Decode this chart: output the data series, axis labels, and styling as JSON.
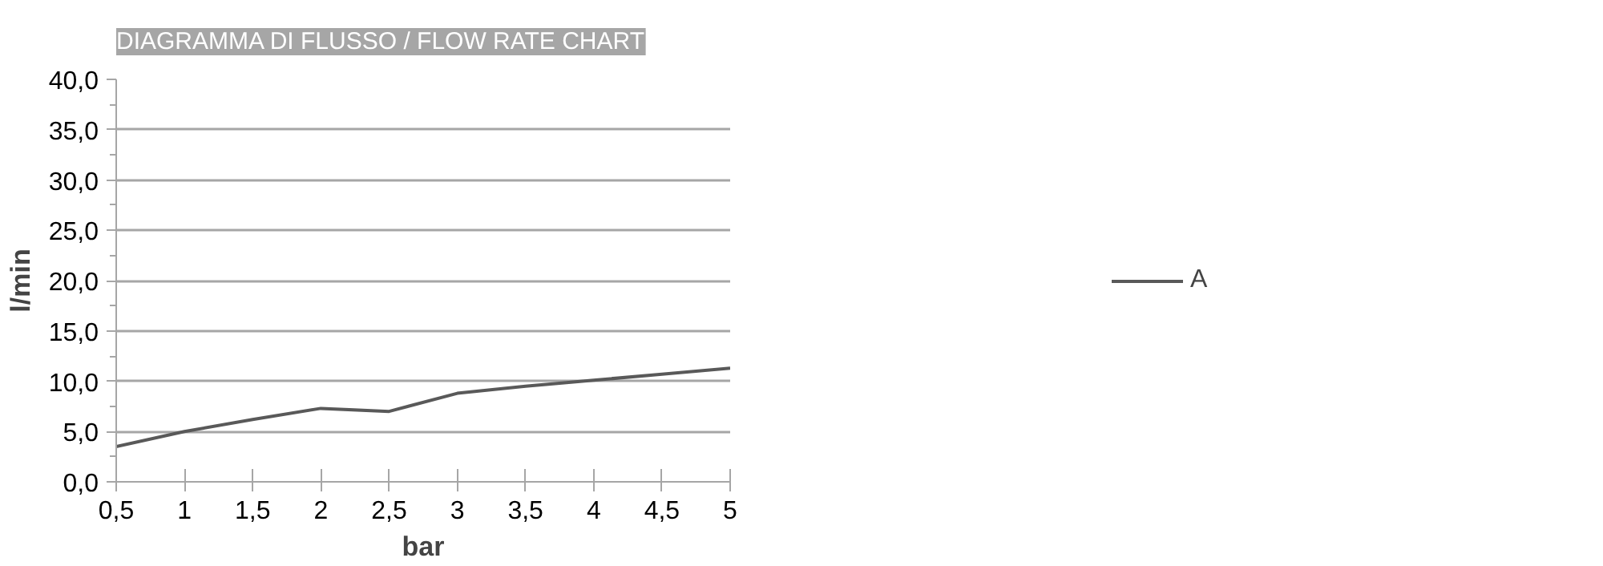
{
  "chart_data": {
    "type": "line",
    "title": "DIAGRAMMA DI FLUSSO / FLOW RATE CHART",
    "xlabel": "bar",
    "ylabel": "l/min",
    "x": [
      0.5,
      1,
      1.5,
      2,
      2.5,
      3,
      3.5,
      4,
      4.5,
      5
    ],
    "series": [
      {
        "name": "A",
        "color": "#595959",
        "values": [
          3.5,
          5.0,
          6.2,
          7.3,
          7.0,
          8.8,
          9.5,
          10.1,
          10.7,
          11.3
        ]
      }
    ],
    "xlim": [
      0.5,
      5
    ],
    "ylim": [
      0,
      40
    ],
    "xticks": [
      {
        "value": 0.5,
        "label": "0,5"
      },
      1,
      {
        "value": 1.5,
        "label": "1,5"
      },
      2,
      {
        "value": 2.5,
        "label": "2,5"
      },
      3,
      {
        "value": 3.5,
        "label": "3,5"
      },
      4,
      {
        "value": 4.5,
        "label": "4,5"
      },
      5
    ],
    "yticks": [
      {
        "value": 0,
        "label": "0,0"
      },
      {
        "value": 5,
        "label": "5,0"
      },
      {
        "value": 10,
        "label": "10,0"
      },
      {
        "value": 15,
        "label": "15,0"
      },
      {
        "value": 20,
        "label": "20,0"
      },
      {
        "value": 25,
        "label": "25,0"
      },
      {
        "value": 30,
        "label": "30,0"
      },
      {
        "value": 35,
        "label": "35,0"
      },
      {
        "value": 40,
        "label": "40,0"
      }
    ],
    "grid": "y",
    "legend": "right",
    "marker": "none",
    "line_style": "solid"
  }
}
